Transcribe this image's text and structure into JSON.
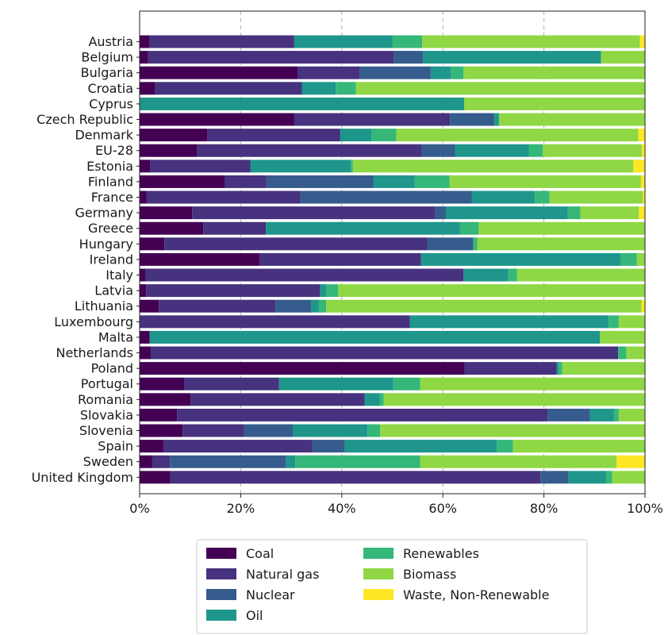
{
  "chart_data": {
    "type": "bar",
    "orientation": "horizontal",
    "stacked": true,
    "xlim": [
      0,
      100
    ],
    "x_tick_values": [
      0,
      20,
      40,
      60,
      80,
      100
    ],
    "x_tick_labels": [
      "0%",
      "20%",
      "40%",
      "60%",
      "80%",
      "100%"
    ],
    "grid": "vertical dashed",
    "legend_position": "bottom",
    "categories": [
      "Austria",
      "Belgium",
      "Bulgaria",
      "Croatia",
      "Cyprus",
      "Czech Republic",
      "Denmark",
      "EU-28",
      "Estonia",
      "Finland",
      "France",
      "Germany",
      "Greece",
      "Hungary",
      "Ireland",
      "Italy",
      "Latvia",
      "Lithuania",
      "Luxembourg",
      "Malta",
      "Netherlands",
      "Poland",
      "Portugal",
      "Romania",
      "Slovakia",
      "Slovenia",
      "Spain",
      "Sweden",
      "United Kingdom"
    ],
    "series": [
      {
        "name": "Coal",
        "color": "#440154",
        "values": [
          2.0,
          1.7,
          31.3,
          3.1,
          0.0,
          30.6,
          13.4,
          11.3,
          2.1,
          16.8,
          1.4,
          10.4,
          12.6,
          4.9,
          23.7,
          1.1,
          1.3,
          3.8,
          0.0,
          2.0,
          2.2,
          64.3,
          8.8,
          10.1,
          7.4,
          8.5,
          4.7,
          2.5,
          6.1
        ]
      },
      {
        "name": "Natural gas",
        "color": "#46327e",
        "values": [
          28.6,
          48.6,
          12.3,
          29.0,
          0.0,
          30.8,
          26.3,
          44.5,
          19.8,
          8.3,
          30.4,
          48.1,
          12.4,
          52.1,
          32.0,
          63.0,
          34.4,
          23.1,
          53.5,
          0.0,
          92.5,
          18.2,
          18.8,
          34.4,
          73.3,
          12.2,
          29.5,
          3.5,
          73.2
        ]
      },
      {
        "name": "Nuclear",
        "color": "#365c8d",
        "values": [
          0.0,
          5.8,
          14.0,
          0.0,
          0.0,
          8.8,
          0.0,
          6.6,
          0.0,
          21.2,
          33.9,
          2.1,
          0.0,
          9.0,
          0.0,
          0.0,
          0.0,
          7.0,
          0.0,
          0.0,
          0.0,
          0.0,
          0.0,
          0.0,
          8.4,
          9.6,
          6.4,
          23.0,
          5.6
        ]
      },
      {
        "name": "Oil",
        "color": "#1f968b",
        "values": [
          19.4,
          35.2,
          4.0,
          6.7,
          64.2,
          0.9,
          6.2,
          14.6,
          19.9,
          8.1,
          12.5,
          24.1,
          38.4,
          0.0,
          39.5,
          8.8,
          1.2,
          1.5,
          39.3,
          89.1,
          0.0,
          0.5,
          22.6,
          3.0,
          4.7,
          14.8,
          30.1,
          1.8,
          7.4
        ]
      },
      {
        "name": "Renewables",
        "color": "#35b779",
        "values": [
          5.9,
          0.0,
          2.5,
          4.0,
          0.0,
          0.0,
          4.9,
          2.8,
          0.4,
          6.9,
          2.9,
          2.5,
          3.7,
          0.8,
          3.2,
          1.8,
          2.4,
          1.5,
          2.0,
          0.0,
          1.6,
          0.6,
          5.3,
          0.8,
          1.0,
          2.5,
          3.2,
          24.7,
          1.2
        ]
      },
      {
        "name": "Biomass",
        "color": "#8fd744",
        "values": [
          43.1,
          8.7,
          35.9,
          57.2,
          35.8,
          28.9,
          47.9,
          19.6,
          55.5,
          37.9,
          18.5,
          11.6,
          32.9,
          33.2,
          1.6,
          25.3,
          60.7,
          62.4,
          5.2,
          8.9,
          3.7,
          16.4,
          44.5,
          51.7,
          5.2,
          52.4,
          26.1,
          38.9,
          6.5
        ]
      },
      {
        "name": "Waste, Non-Renewable",
        "color": "#fde725",
        "values": [
          1.0,
          0.0,
          0.0,
          0.0,
          0.0,
          0.0,
          1.3,
          0.6,
          2.3,
          0.8,
          0.4,
          1.2,
          0.0,
          0.0,
          0.0,
          0.0,
          0.0,
          0.7,
          0.0,
          0.0,
          0.0,
          0.0,
          0.0,
          0.0,
          0.0,
          0.0,
          0.0,
          5.6,
          0.0
        ]
      }
    ]
  }
}
